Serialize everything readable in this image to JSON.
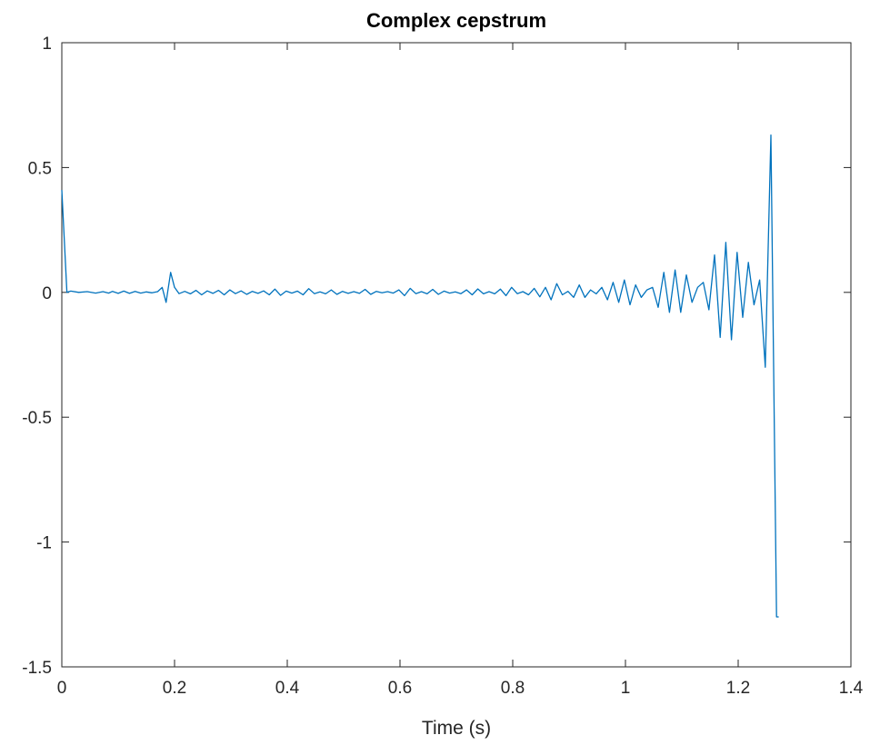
{
  "chart_data": {
    "type": "line",
    "title": "Complex cepstrum",
    "xlabel": "Time (s)",
    "ylabel": "",
    "xlim": [
      0,
      1.4
    ],
    "ylim": [
      -1.5,
      1
    ],
    "x_ticks": [
      0,
      0.2,
      0.4,
      0.6,
      0.8,
      1,
      1.2,
      1.4
    ],
    "x_tick_labels": [
      "0",
      "0.2",
      "0.4",
      "0.6",
      "0.8",
      "1",
      "1.2",
      "1.4"
    ],
    "y_ticks": [
      -1.5,
      -1,
      -0.5,
      0,
      0.5,
      1
    ],
    "y_tick_labels": [
      "-1.5",
      "-1",
      "-0.5",
      "0",
      "0.5",
      "1"
    ],
    "grid": false,
    "box": true,
    "colors": {
      "line": "#0072BD",
      "axes": "#262626",
      "background": "#ffffff"
    },
    "series": [
      {
        "x": [
          0,
          0.009,
          0.016,
          0.03,
          0.045,
          0.06,
          0.073,
          0.083,
          0.09,
          0.1,
          0.11,
          0.12,
          0.13,
          0.14,
          0.15,
          0.16,
          0.17,
          0.178,
          0.185,
          0.193,
          0.2,
          0.208,
          0.218,
          0.228,
          0.238,
          0.248,
          0.258,
          0.268,
          0.278,
          0.288,
          0.298,
          0.308,
          0.318,
          0.328,
          0.338,
          0.348,
          0.358,
          0.368,
          0.378,
          0.388,
          0.398,
          0.408,
          0.418,
          0.428,
          0.438,
          0.448,
          0.458,
          0.468,
          0.478,
          0.488,
          0.498,
          0.508,
          0.518,
          0.528,
          0.538,
          0.548,
          0.558,
          0.568,
          0.578,
          0.588,
          0.598,
          0.608,
          0.618,
          0.628,
          0.638,
          0.648,
          0.658,
          0.668,
          0.678,
          0.688,
          0.698,
          0.708,
          0.718,
          0.728,
          0.738,
          0.748,
          0.758,
          0.768,
          0.778,
          0.788,
          0.798,
          0.808,
          0.818,
          0.828,
          0.838,
          0.848,
          0.858,
          0.868,
          0.878,
          0.888,
          0.898,
          0.908,
          0.918,
          0.928,
          0.938,
          0.948,
          0.958,
          0.968,
          0.978,
          0.988,
          0.998,
          1.008,
          1.018,
          1.028,
          1.038,
          1.048,
          1.058,
          1.068,
          1.078,
          1.088,
          1.098,
          1.108,
          1.118,
          1.128,
          1.138,
          1.148,
          1.158,
          1.168,
          1.178,
          1.188,
          1.198,
          1.208,
          1.218,
          1.228,
          1.238,
          1.248,
          1.258,
          1.268,
          1.272
        ],
        "y": [
          0.41,
          0.0,
          0.005,
          0.0,
          0.003,
          -0.003,
          0.003,
          -0.003,
          0.004,
          -0.004,
          0.005,
          -0.004,
          0.004,
          -0.003,
          0.002,
          -0.002,
          0.003,
          0.02,
          -0.04,
          0.08,
          0.02,
          -0.005,
          0.004,
          -0.006,
          0.008,
          -0.01,
          0.006,
          -0.004,
          0.008,
          -0.01,
          0.01,
          -0.005,
          0.006,
          -0.008,
          0.004,
          -0.004,
          0.006,
          -0.01,
          0.013,
          -0.012,
          0.005,
          -0.003,
          0.005,
          -0.01,
          0.015,
          -0.005,
          0.002,
          -0.006,
          0.01,
          -0.008,
          0.004,
          -0.004,
          0.003,
          -0.004,
          0.012,
          -0.008,
          0.004,
          -0.002,
          0.003,
          -0.003,
          0.01,
          -0.013,
          0.016,
          -0.005,
          0.003,
          -0.006,
          0.012,
          -0.008,
          0.005,
          -0.003,
          0.002,
          -0.005,
          0.01,
          -0.01,
          0.014,
          -0.006,
          0.003,
          -0.006,
          0.013,
          -0.013,
          0.02,
          -0.005,
          0.003,
          -0.01,
          0.016,
          -0.018,
          0.02,
          -0.03,
          0.035,
          -0.01,
          0.004,
          -0.02,
          0.03,
          -0.02,
          0.01,
          -0.006,
          0.02,
          -0.03,
          0.04,
          -0.04,
          0.05,
          -0.05,
          0.03,
          -0.02,
          0.01,
          0.02,
          -0.06,
          0.08,
          -0.08,
          0.09,
          -0.08,
          0.07,
          -0.04,
          0.02,
          0.04,
          -0.07,
          0.15,
          -0.18,
          0.2,
          -0.19,
          0.16,
          -0.1,
          0.12,
          -0.05,
          0.05,
          -0.3,
          0.63,
          -1.3,
          -1.3
        ]
      }
    ]
  }
}
